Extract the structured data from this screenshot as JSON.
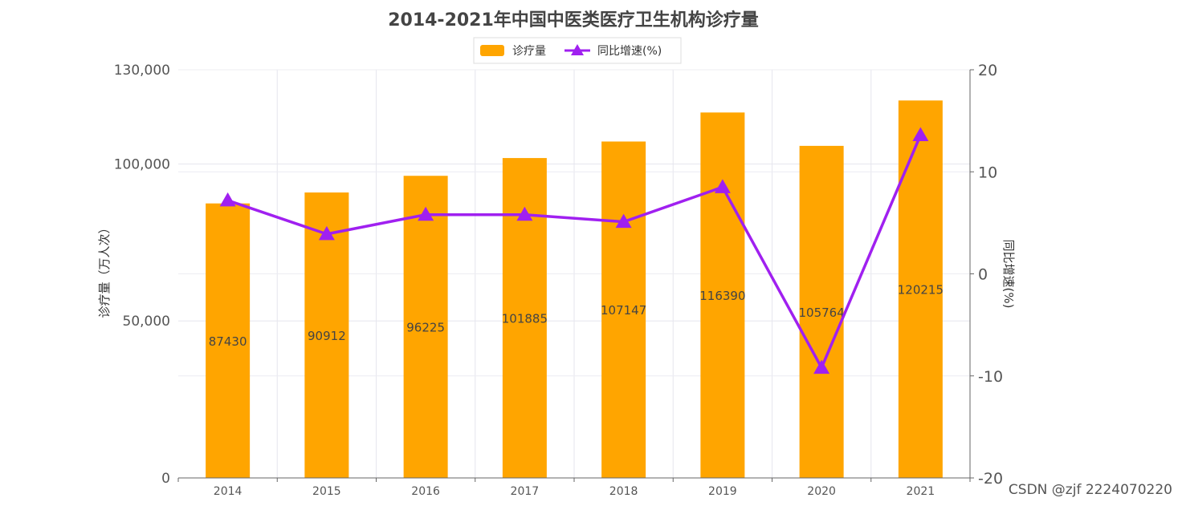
{
  "chart_data": {
    "type": "bar",
    "title": "2014-2021年中国中医类医疗卫生机构诊疗量",
    "categories": [
      "2014",
      "2015",
      "2016",
      "2017",
      "2018",
      "2019",
      "2020",
      "2021"
    ],
    "series": [
      {
        "name": "诊疗量",
        "type": "bar",
        "axis": "left",
        "color": "#FFA500",
        "values": [
          87430,
          90912,
          96225,
          101885,
          107147,
          116390,
          105764,
          120215
        ],
        "value_labels": [
          "87430",
          "90912",
          "96225",
          "101885",
          "107147",
          "116390",
          "105764",
          "120215"
        ]
      },
      {
        "name": "同比增速(%)",
        "type": "line",
        "axis": "right",
        "marker": "triangle",
        "color": "#A020F0",
        "values": [
          7.2,
          3.9,
          5.8,
          5.8,
          5.1,
          8.5,
          -9.2,
          13.6
        ]
      }
    ],
    "y_left": {
      "label": "诊疗量（万人次）",
      "range": [
        0,
        130000
      ],
      "ticks": [
        0,
        50000,
        100000,
        130000
      ],
      "tick_labels": [
        "0",
        "50,000",
        "100,000",
        "130,000"
      ]
    },
    "y_right": {
      "label": "同比增速(%)",
      "range": [
        -20,
        20
      ],
      "ticks": [
        -20,
        -10,
        0,
        10,
        20
      ],
      "tick_labels": [
        "-20",
        "-10",
        "0",
        "10",
        "20"
      ]
    },
    "legend_position": "top-center",
    "grid": true
  },
  "watermark": "CSDN @zjf 2224070220"
}
